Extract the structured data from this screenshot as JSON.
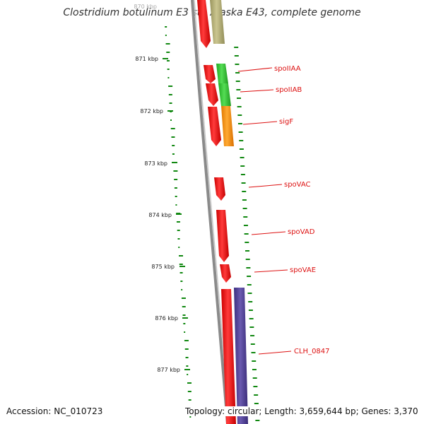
{
  "title": "Clostridium botulinum E3 str. Alaska E43, complete genome",
  "scale_labels": [
    "870 kbp",
    "871 kbp",
    "872 kbp",
    "873 kbp",
    "874 kbp",
    "875 kbp",
    "876 kbp",
    "877 kbp"
  ],
  "genes": [
    "spoIIAA",
    "spoIIAB",
    "sigF",
    "spoVAC",
    "spoVAD",
    "spoVAE",
    "CLH_0847"
  ],
  "footer": {
    "accession": "Accession: NC_010723",
    "stats": "Topology: circular; Length: 3,659,644 bp; Genes: 3,370"
  },
  "colors": {
    "backbone": "#8a8a8a",
    "feature_red": "#ee1111",
    "feature_green": "#33cc33",
    "feature_orange": "#ff9911",
    "feature_purple": "#554499",
    "feature_olive": "#b5b07a",
    "gc_dots": "#118811",
    "label_red": "#dd1111"
  }
}
